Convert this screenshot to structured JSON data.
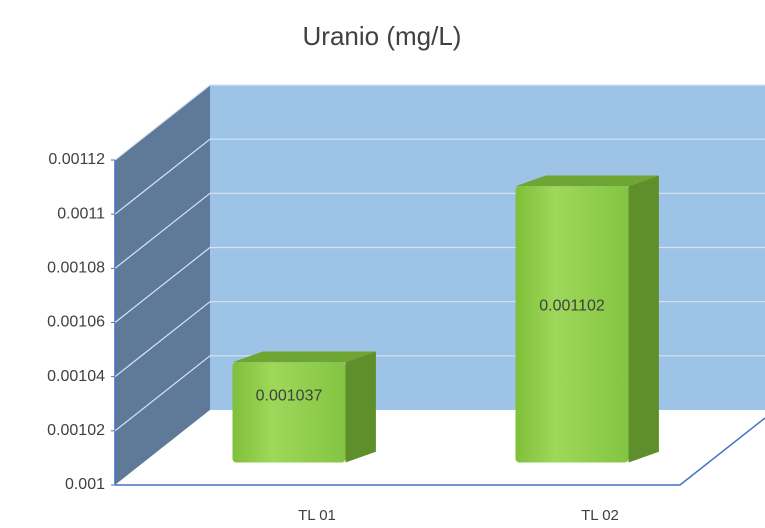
{
  "chart_data": {
    "type": "bar",
    "title": "Uranio (mg/L)",
    "categories": [
      "TL 01",
      "TL 02"
    ],
    "values": [
      0.001037,
      0.001102
    ],
    "color": "#92d050",
    "ylim": [
      0.001,
      0.00112
    ],
    "yticks": [
      0.001,
      0.00102,
      0.00104,
      0.00106,
      0.00108,
      0.0011,
      0.00112
    ],
    "grid": true
  }
}
